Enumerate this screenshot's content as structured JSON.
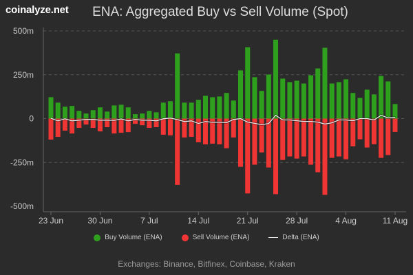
{
  "logo": "coinalyze.net",
  "title": "ENA: Aggregated Buy vs Sell Volume (Spot)",
  "footnote": "Exchanges: Binance, Bitfinex, Coinbase, Kraken",
  "chart_data": {
    "type": "bar",
    "title": "ENA: Aggregated Buy vs Sell Volume (Spot)",
    "x_start": "23 Jun",
    "x_end": "11 Aug",
    "x_ticks": [
      "23 Jun",
      "30 Jun",
      "7 Jul",
      "14 Jul",
      "21 Jul",
      "28 Jul",
      "4 Aug",
      "11 Aug"
    ],
    "y_ticks": [
      "500m",
      "250m",
      "0",
      "-250m",
      "-500m"
    ],
    "ylim": [
      -500,
      500
    ],
    "y_unit": "m",
    "grid": true,
    "legend_position": "bottom",
    "colors": {
      "buy": "#2fa01e",
      "sell": "#f03535",
      "delta": "#eeeeee",
      "background": "#2b2b2b"
    },
    "series": [
      {
        "name": "Buy Volume (ENA)",
        "type": "bar",
        "values": [
          122,
          91,
          68,
          72,
          44,
          29,
          48,
          64,
          40,
          75,
          79,
          64,
          25,
          29,
          44,
          36,
          91,
          99,
          372,
          91,
          91,
          107,
          130,
          122,
          126,
          146,
          103,
          275,
          407,
          236,
          158,
          251,
          450,
          228,
          208,
          216,
          200,
          247,
          286,
          404,
          200,
          208,
          224,
          146,
          118,
          165,
          138,
          243,
          212,
          83
        ]
      },
      {
        "name": "Sell Volume (ENA)",
        "type": "bar",
        "values": [
          -120,
          -104,
          -69,
          -85,
          -53,
          -34,
          -53,
          -73,
          -49,
          -85,
          -81,
          -77,
          -30,
          -38,
          -53,
          -49,
          -92,
          -96,
          -378,
          -108,
          -104,
          -135,
          -147,
          -143,
          -147,
          -169,
          -108,
          -275,
          -427,
          -263,
          -193,
          -279,
          -431,
          -236,
          -216,
          -228,
          -216,
          -263,
          -306,
          -435,
          -224,
          -216,
          -232,
          -158,
          -118,
          -165,
          -146,
          -224,
          -208,
          -76
        ]
      },
      {
        "name": "Delta (ENA)",
        "type": "line",
        "values": [
          2,
          -13,
          -1,
          -13,
          -9,
          -5,
          -5,
          -9,
          -9,
          -10,
          -2,
          -13,
          -5,
          -9,
          -9,
          -13,
          -1,
          3,
          -6,
          -17,
          -13,
          -28,
          -17,
          -21,
          -21,
          -23,
          -5,
          0,
          -20,
          -27,
          -35,
          -28,
          19,
          -8,
          -8,
          -12,
          -16,
          -16,
          -20,
          -31,
          -24,
          -8,
          -8,
          -12,
          0,
          0,
          -8,
          19,
          4,
          7
        ]
      }
    ]
  }
}
